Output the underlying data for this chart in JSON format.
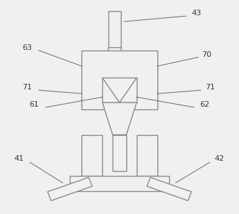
{
  "background_color": "#f0f0f0",
  "line_color": "#888888",
  "line_width": 1.0,
  "font_size": 8,
  "label_color": "#333333",
  "fig_width": 3.46,
  "fig_height": 3.09,
  "dpi": 100
}
